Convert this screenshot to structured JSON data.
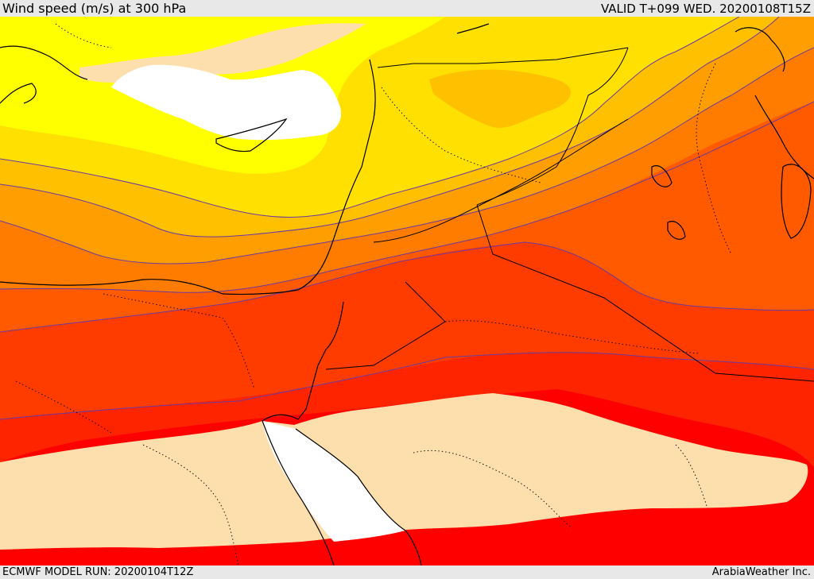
{
  "header": {
    "title": "Wind speed (m/s) at 300 hPa",
    "valid_time": "VALID T+099 WED. 20200108T15Z"
  },
  "footer": {
    "model_run": "ECMWF MODEL RUN: 20200104T12Z",
    "credit": "ArabiaWeather Inc."
  },
  "map": {
    "field": "wind speed",
    "level": "300 hPa",
    "colors": {
      "wheat": "#fddfad",
      "white": "#ffffff",
      "yellow": "#ffff00",
      "gold": "#ffe000",
      "amber": "#ffc000",
      "orange_light": "#ff9e00",
      "orange": "#ff7c00",
      "orange_red": "#ff5a00",
      "red_orange": "#ff3c00",
      "red_deep": "#ff2400",
      "red": "#ff0000",
      "contour_line": "#6a3aa0",
      "coastline": "#000000"
    }
  }
}
